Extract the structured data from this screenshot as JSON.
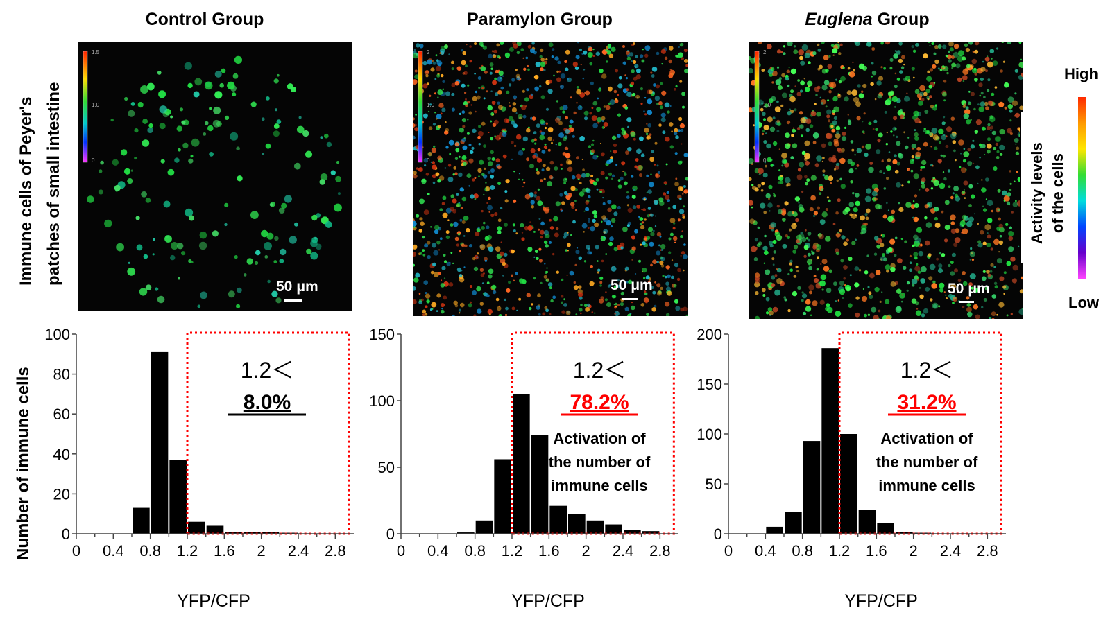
{
  "panels": [
    {
      "title": "Control Group",
      "title_italic": "",
      "title_rest": "",
      "scale": "50 μm"
    },
    {
      "title": "Paramylon Group",
      "title_italic": "",
      "title_rest": "",
      "scale": "50 μm"
    },
    {
      "title": "",
      "title_italic": "Euglena",
      "title_rest": " Group",
      "scale": "50 μm"
    }
  ],
  "row_label_line1": "Immune cells of Peyer's",
  "row_label_line2": "patches of small intestine",
  "legend": {
    "high": "High",
    "low": "Low",
    "label_line1": "Activity levels",
    "label_line2": "of the cells"
  },
  "y_axis_label": "Number of immune cells",
  "inset_scales": [
    {
      "top": "1.5",
      "mid": "1.0",
      "bottom": "0"
    },
    {
      "top": "2",
      "mid": "1.0",
      "bottom": "0"
    },
    {
      "top": "2",
      "mid": "1.0",
      "bottom": "0"
    }
  ],
  "colors": {
    "bar": "#000000",
    "threshold_box": "#ff0000",
    "highlight": "#ff0000"
  },
  "chart_data": [
    {
      "type": "bar",
      "xlabel": "YFP/CFP",
      "ylabel": "Number of immune cells",
      "xlim": [
        0,
        3.0
      ],
      "ylim": [
        0,
        100
      ],
      "yticks": [
        0,
        20,
        40,
        60,
        80,
        100
      ],
      "xticks": [
        "0",
        "0.4",
        "0.8",
        "1.2",
        "1.6",
        "2",
        "2.4",
        "2.8"
      ],
      "bins": [
        0.6,
        0.8,
        1.0,
        1.2,
        1.4,
        1.6,
        1.8,
        2.0,
        2.2
      ],
      "bin_width": 0.2,
      "values": [
        13,
        91,
        37,
        6,
        4,
        1,
        1,
        1,
        0.5
      ],
      "threshold_label": "1.2＜",
      "percent": "8.0%",
      "percent_color": "#000000",
      "note": []
    },
    {
      "type": "bar",
      "xlabel": "YFP/CFP",
      "ylabel": "",
      "xlim": [
        0,
        3.0
      ],
      "ylim": [
        0,
        150
      ],
      "yticks": [
        0,
        50,
        100,
        150
      ],
      "xticks": [
        "0",
        "0.4",
        "0.8",
        "1.2",
        "1.6",
        "2",
        "2.4",
        "2.8"
      ],
      "bins": [
        0.6,
        0.8,
        1.0,
        1.2,
        1.4,
        1.6,
        1.8,
        2.0,
        2.2,
        2.4,
        2.6
      ],
      "bin_width": 0.2,
      "values": [
        1,
        10,
        56,
        105,
        74,
        21,
        15,
        10,
        7,
        3,
        2
      ],
      "threshold_label": "1.2＜",
      "percent": "78.2%",
      "percent_color": "#ff0000",
      "note": [
        "Activation of",
        "the number of",
        "immune cells"
      ]
    },
    {
      "type": "bar",
      "xlabel": "YFP/CFP",
      "ylabel": "",
      "xlim": [
        0,
        3.0
      ],
      "ylim": [
        0,
        200
      ],
      "yticks": [
        0,
        50,
        100,
        150,
        200
      ],
      "xticks": [
        "0",
        "0.4",
        "0.8",
        "1.2",
        "1.6",
        "2",
        "2.4",
        "2.8"
      ],
      "bins": [
        0.4,
        0.6,
        0.8,
        1.0,
        1.2,
        1.4,
        1.6,
        1.8,
        2.0
      ],
      "bin_width": 0.2,
      "values": [
        7,
        22,
        93,
        186,
        100,
        24,
        11,
        2,
        1
      ],
      "threshold_label": "1.2＜",
      "percent": "31.2%",
      "percent_color": "#ff0000",
      "note": [
        "Activation of",
        "the number of",
        "immune cells"
      ]
    }
  ]
}
